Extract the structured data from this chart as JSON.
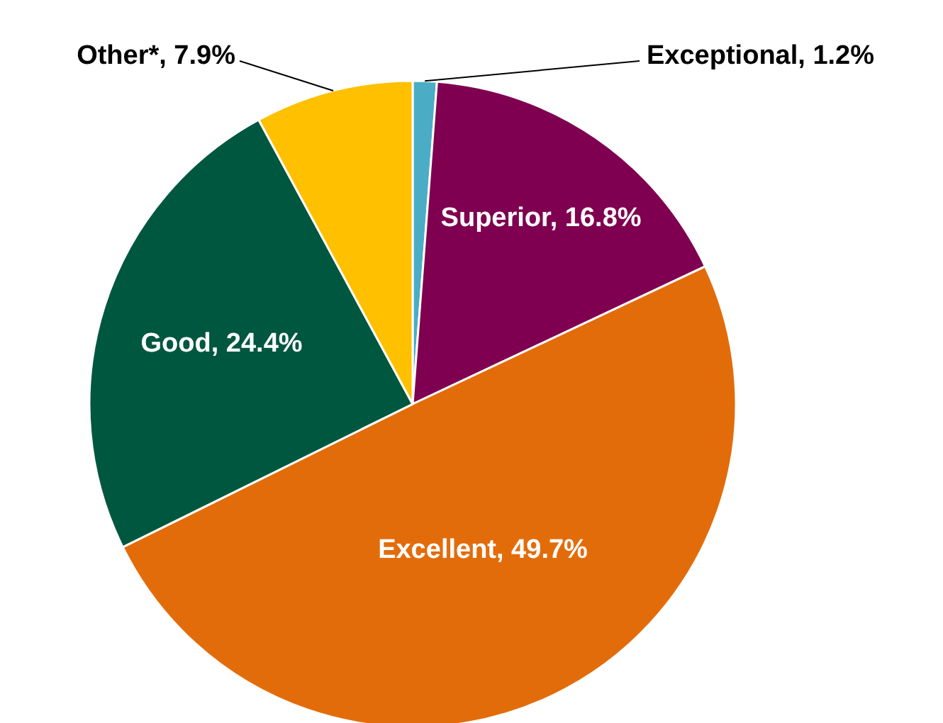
{
  "chart_data": {
    "type": "pie",
    "categories": [
      "Exceptional",
      "Superior",
      "Excellent",
      "Good",
      "Other*"
    ],
    "values": [
      1.2,
      16.8,
      49.7,
      24.4,
      7.9
    ],
    "value_labels": [
      "1.2%",
      "16.8%",
      "49.7%",
      "24.4%",
      "7.9%"
    ],
    "colors": [
      "#4bacc6",
      "#7f0050",
      "#e36c0a",
      "#00573f",
      "#ffc000"
    ]
  }
}
